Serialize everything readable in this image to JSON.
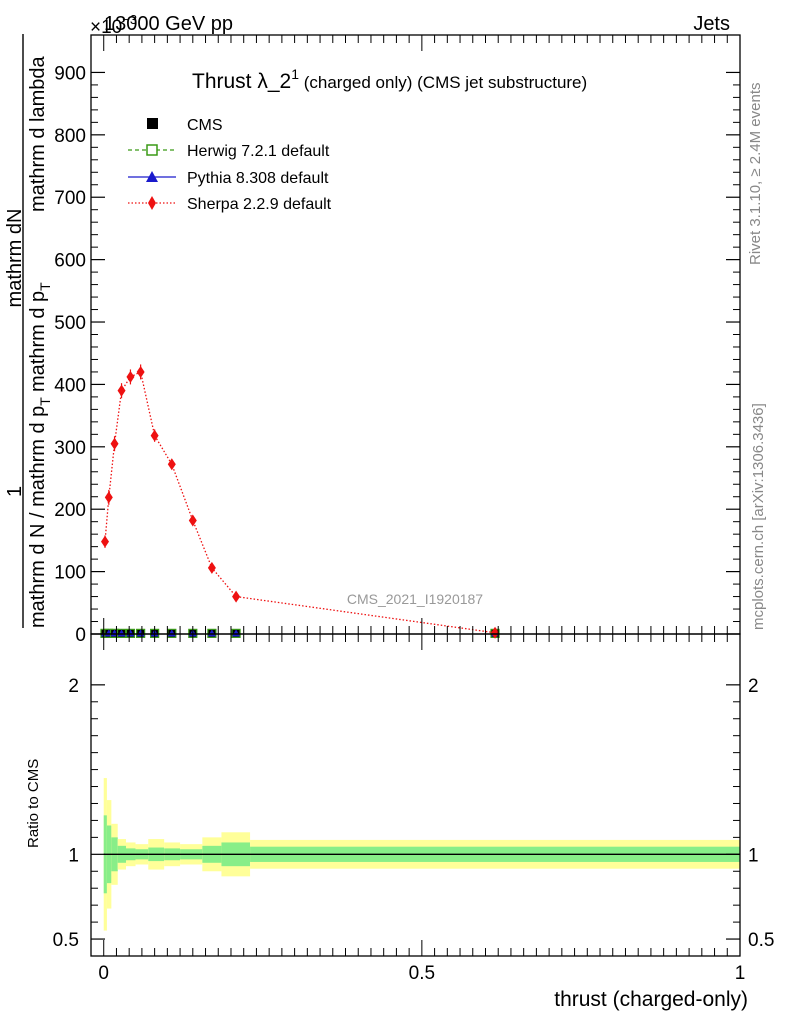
{
  "header": {
    "left": "13000 GeV pp",
    "right": "Jets",
    "exponent": "×10",
    "exponent_power": "−3"
  },
  "side_labels": {
    "rivet": "Rivet 3.1.10, ≥ 2.4M events",
    "mcplots": "mcplots.cern.ch [arXiv:1306.3436]"
  },
  "watermark": "CMS_2021_I1920187",
  "chart_data": [
    {
      "type": "line",
      "title": "Thrust λ_2",
      "title_sup": "1",
      "title_suffix": " (charged only) (CMS jet substructure)",
      "ylabel_numerator": "1",
      "ylabel_numerator_detail": "mathrm dN",
      "ylabel_denominator": "mathrm d N / mathrm d p",
      "ylabel_denominator_2": "mathrm d p",
      "ylabel_denominator_3": "mathrm d lambda",
      "ylabel_subscript": "T",
      "xlim": [
        -0.02,
        1.0
      ],
      "ylim": [
        0,
        960
      ],
      "y_unit_scale": "×10^-3",
      "yticks": [
        0,
        100,
        200,
        300,
        400,
        500,
        600,
        700,
        800,
        900
      ],
      "ytick_labels": [
        "0",
        "100",
        "200",
        "300",
        "400",
        "500",
        "600",
        "700",
        "800",
        "900"
      ],
      "legend_position": "top-left",
      "legend": [
        {
          "label": "CMS",
          "marker": "square-filled",
          "color": "#000000"
        },
        {
          "label": "Herwig 7.2.1 default",
          "marker": "square-open",
          "color": "#3a9a16"
        },
        {
          "label": "Pythia 8.308 default",
          "marker": "triangle",
          "color": "#1a1acc"
        },
        {
          "label": "Sherpa 2.2.9 default",
          "marker": "diamond",
          "color": "#ee1111"
        }
      ],
      "series": [
        {
          "name": "Sherpa 2.2.9 default",
          "x": [
            0.002,
            0.008,
            0.017,
            0.028,
            0.042,
            0.058,
            0.08,
            0.107,
            0.14,
            0.17,
            0.208,
            0.615
          ],
          "values": [
            148,
            219,
            305,
            390,
            412,
            420,
            318,
            272,
            182,
            106,
            60,
            2
          ],
          "errors": [
            10,
            12,
            12,
            12,
            12,
            12,
            10,
            8,
            7,
            5,
            4,
            1
          ]
        },
        {
          "name": "CMS",
          "x": [
            0.002,
            0.008,
            0.017,
            0.028,
            0.042,
            0.058,
            0.08,
            0.107,
            0.14,
            0.17,
            0.208,
            0.615
          ],
          "values": [
            1,
            1,
            1,
            1,
            1,
            1,
            1,
            1,
            1,
            1,
            1,
            1
          ]
        }
      ]
    },
    {
      "type": "area",
      "ylabel": "Ratio to CMS",
      "xlabel": "thrust (charged-only)",
      "xlim": [
        -0.02,
        1.0
      ],
      "ylim": [
        0.4,
        2.3
      ],
      "yticks": [
        0.5,
        1,
        2
      ],
      "ytick_labels": [
        "0.5",
        "1",
        "2"
      ],
      "xticks": [
        0,
        0.5,
        1
      ],
      "xtick_labels": [
        "0",
        "0.5",
        "1"
      ],
      "bins": [
        0.0,
        0.005,
        0.012,
        0.022,
        0.035,
        0.05,
        0.07,
        0.095,
        0.12,
        0.155,
        0.185,
        0.23,
        1.0
      ],
      "inner_band_half": [
        0.23,
        0.17,
        0.1,
        0.05,
        0.035,
        0.03,
        0.04,
        0.035,
        0.03,
        0.05,
        0.07,
        0.045
      ],
      "outer_band_half": [
        0.45,
        0.32,
        0.18,
        0.09,
        0.07,
        0.06,
        0.09,
        0.07,
        0.06,
        0.1,
        0.13,
        0.085
      ],
      "reference": 1
    }
  ]
}
